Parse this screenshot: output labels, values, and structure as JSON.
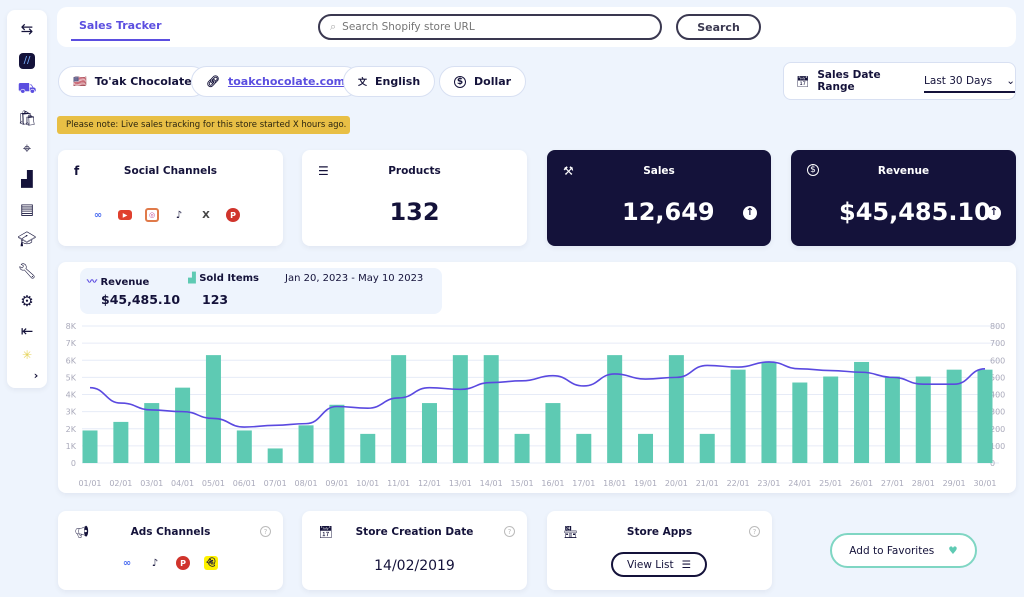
{
  "sidebar": {
    "items": [
      "store-switch",
      "app-logo",
      "sales-tracker",
      "shop",
      "target",
      "rankings",
      "archive",
      "academy",
      "tools",
      "settings",
      "logout",
      "theme"
    ]
  },
  "topbar": {
    "tab": "Sales Tracker",
    "search_placeholder": "Search Shopify store URL",
    "search_button": "Search"
  },
  "store": {
    "flag": "🇺🇸",
    "name": "To'ak Chocolate",
    "url": "toakchocolate.com",
    "language": "English",
    "currency": "Dollar"
  },
  "date_range": {
    "label": "Sales Date Range",
    "value": "Last 30 Days"
  },
  "note": "Please note: Live sales tracking for this store started X hours ago.",
  "cards": {
    "social": {
      "title": "Social Channels",
      "channels": [
        "meta",
        "youtube",
        "instagram",
        "tiktok",
        "x",
        "pinterest"
      ]
    },
    "products": {
      "title": "Products",
      "value": "132"
    },
    "sales": {
      "title": "Sales",
      "value": "12,649"
    },
    "revenue": {
      "title": "Revenue",
      "value": "$45,485.10"
    }
  },
  "chart_summary": {
    "revenue_label": "Revenue",
    "revenue_value": "$45,485.10",
    "sold_label": "Sold Items",
    "sold_value": "123",
    "date_span": "Jan 20, 2023 - May 10 2023"
  },
  "colors": {
    "bars": "#5ecab3",
    "line": "#5a49e0",
    "dark": "#14123a",
    "accent": "#5b4ee0"
  },
  "chart_data": {
    "type": "bar+line",
    "categories": [
      "01/01",
      "02/01",
      "03/01",
      "04/01",
      "05/01",
      "06/01",
      "07/01",
      "08/01",
      "09/01",
      "10/01",
      "11/01",
      "12/01",
      "13/01",
      "14/01",
      "15/01",
      "16/01",
      "17/01",
      "18/01",
      "19/01",
      "20/01",
      "21/01",
      "22/01",
      "23/01",
      "24/01",
      "25/01",
      "26/01",
      "27/01",
      "28/01",
      "29/01",
      "30/01"
    ],
    "series": [
      {
        "name": "Sold Items",
        "type": "bar",
        "axis": "right",
        "values": [
          190,
          240,
          350,
          440,
          630,
          190,
          85,
          220,
          340,
          170,
          630,
          350,
          630,
          630,
          170,
          350,
          170,
          630,
          170,
          630,
          170,
          545,
          590,
          470,
          505,
          590,
          505,
          505,
          545,
          545
        ]
      },
      {
        "name": "Revenue",
        "type": "line",
        "axis": "left",
        "values": [
          4400,
          3500,
          3100,
          3000,
          2600,
          2100,
          2200,
          2300,
          3300,
          3200,
          3800,
          4400,
          4300,
          4700,
          4800,
          5100,
          4500,
          5200,
          4900,
          5000,
          5700,
          5600,
          5900,
          5500,
          5400,
          5300,
          5000,
          4600,
          4600,
          5500
        ]
      }
    ],
    "left_axis": {
      "ticks": [
        "0",
        "1K",
        "2K",
        "3K",
        "4K",
        "5K",
        "6K",
        "7K",
        "8K"
      ],
      "range": [
        0,
        8000
      ]
    },
    "right_axis": {
      "ticks": [
        "0",
        "100",
        "200",
        "300",
        "400",
        "500",
        "600",
        "700",
        "800"
      ],
      "range": [
        0,
        800
      ]
    },
    "grid": true
  },
  "bottom": {
    "ads": {
      "title": "Ads Channels",
      "channels": [
        "meta",
        "tiktok",
        "pinterest",
        "snapchat"
      ]
    },
    "creation": {
      "title": "Store Creation Date",
      "value": "14/02/2019"
    },
    "apps": {
      "title": "Store Apps",
      "button": "View List"
    },
    "favorites": "Add to Favorites",
    "help": "?"
  }
}
